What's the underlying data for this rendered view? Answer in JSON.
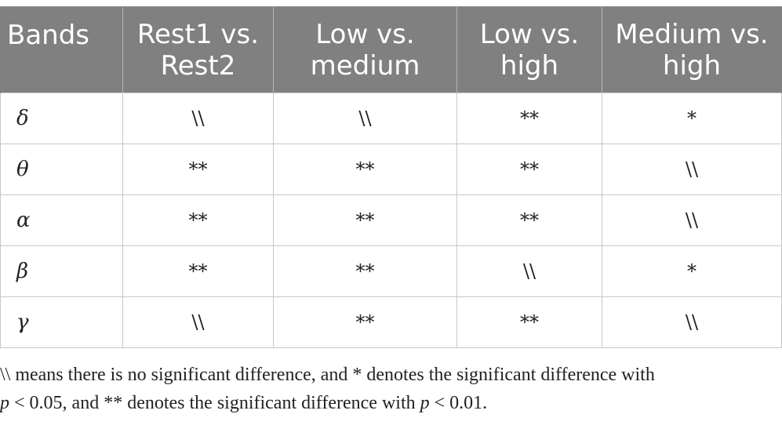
{
  "table": {
    "headers": [
      "Bands",
      "Rest1 vs. Rest2",
      "Low vs. medium",
      "Low vs. high",
      "Medium vs. high"
    ],
    "rows": [
      {
        "band": "δ",
        "cells": [
          "\\\\",
          "\\\\",
          "**",
          "*"
        ]
      },
      {
        "band": "θ",
        "cells": [
          "**",
          "**",
          "**",
          "\\\\"
        ]
      },
      {
        "band": "α",
        "cells": [
          "**",
          "**",
          "**",
          "\\\\"
        ]
      },
      {
        "band": "β",
        "cells": [
          "**",
          "**",
          "\\\\",
          "*"
        ]
      },
      {
        "band": "γ",
        "cells": [
          "\\\\",
          "**",
          "**",
          "\\\\"
        ]
      }
    ]
  },
  "footnote": {
    "part1": "\\\\ means there is no significant difference, and * denotes the significant difference with",
    "p1": "p",
    "part2": " < 0.05, and ** denotes the significant difference with ",
    "p2": "p",
    "part3": " < 0.01."
  }
}
